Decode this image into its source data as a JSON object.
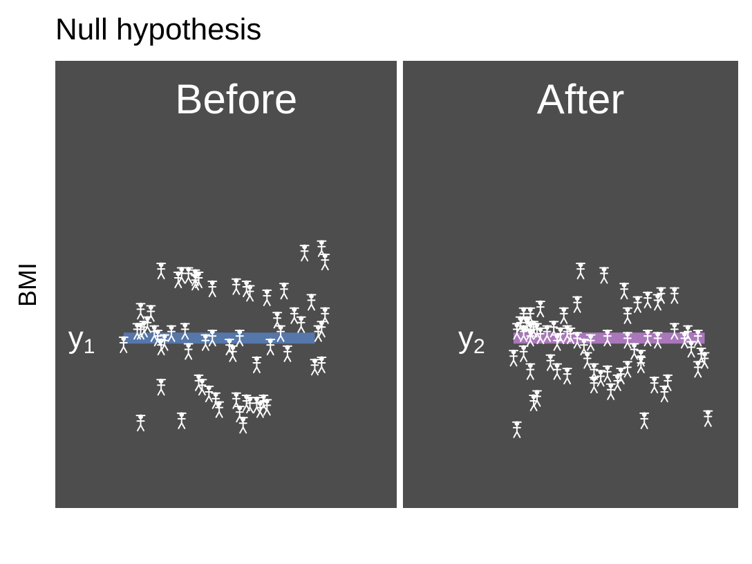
{
  "chart_data": {
    "type": "scatter",
    "title": "Null hypothesis",
    "ylabel": "BMI",
    "xlabel": "",
    "ylim": [
      0,
      10
    ],
    "colors": {
      "panel": "#4d4d4d",
      "points": "#ffffff",
      "before_mean": "#5577aa",
      "after_mean": "#aa77bb"
    },
    "panels": [
      {
        "name": "Before",
        "mean_label": "y",
        "mean_subscript": "1",
        "mean": 3.8,
        "mean_x_range": [
          0.2,
          0.76
        ],
        "points": [
          [
            0.31,
            5.3
          ],
          [
            0.36,
            5.1
          ],
          [
            0.37,
            5.2
          ],
          [
            0.39,
            5.2
          ],
          [
            0.41,
            5.05
          ],
          [
            0.42,
            5.1
          ],
          [
            0.41,
            5.15
          ],
          [
            0.46,
            4.9
          ],
          [
            0.53,
            4.95
          ],
          [
            0.56,
            4.9
          ],
          [
            0.62,
            4.7
          ],
          [
            0.67,
            4.85
          ],
          [
            0.57,
            4.8
          ],
          [
            0.7,
            4.3
          ],
          [
            0.72,
            4.1
          ],
          [
            0.75,
            4.6
          ],
          [
            0.79,
            5.5
          ],
          [
            0.78,
            5.8
          ],
          [
            0.73,
            5.7
          ],
          [
            0.25,
            4.4
          ],
          [
            0.27,
            4.1
          ],
          [
            0.28,
            4.35
          ],
          [
            0.24,
            3.95
          ],
          [
            0.25,
            3.95
          ],
          [
            0.26,
            4.0
          ],
          [
            0.29,
            3.9
          ],
          [
            0.3,
            3.8
          ],
          [
            0.34,
            3.9
          ],
          [
            0.38,
            3.95
          ],
          [
            0.31,
            3.6
          ],
          [
            0.32,
            3.7
          ],
          [
            0.39,
            3.5
          ],
          [
            0.44,
            3.7
          ],
          [
            0.46,
            3.8
          ],
          [
            0.51,
            3.6
          ],
          [
            0.52,
            3.45
          ],
          [
            0.54,
            3.8
          ],
          [
            0.63,
            3.6
          ],
          [
            0.65,
            4.2
          ],
          [
            0.66,
            3.9
          ],
          [
            0.68,
            3.45
          ],
          [
            0.77,
            3.9
          ],
          [
            0.78,
            4.0
          ],
          [
            0.79,
            4.3
          ],
          [
            0.2,
            3.65
          ],
          [
            0.78,
            3.2
          ],
          [
            0.76,
            3.15
          ],
          [
            0.59,
            3.2
          ],
          [
            0.31,
            2.7
          ],
          [
            0.42,
            2.8
          ],
          [
            0.43,
            2.7
          ],
          [
            0.45,
            2.55
          ],
          [
            0.47,
            2.4
          ],
          [
            0.48,
            2.2
          ],
          [
            0.53,
            2.4
          ],
          [
            0.56,
            2.35
          ],
          [
            0.57,
            2.3
          ],
          [
            0.59,
            2.3
          ],
          [
            0.6,
            2.2
          ],
          [
            0.61,
            2.35
          ],
          [
            0.62,
            2.25
          ],
          [
            0.54,
            2.1
          ],
          [
            0.25,
            1.9
          ],
          [
            0.37,
            1.95
          ],
          [
            0.55,
            1.85
          ]
        ]
      },
      {
        "name": "After",
        "mean_label": "y",
        "mean_subscript": "2",
        "mean": 3.8,
        "mean_x_range": [
          0.33,
          0.9
        ],
        "points": [
          [
            0.53,
            5.3
          ],
          [
            0.6,
            5.2
          ],
          [
            0.66,
            4.85
          ],
          [
            0.76,
            4.6
          ],
          [
            0.77,
            4.75
          ],
          [
            0.81,
            4.75
          ],
          [
            0.73,
            4.65
          ],
          [
            0.7,
            4.55
          ],
          [
            0.67,
            4.3
          ],
          [
            0.52,
            4.55
          ],
          [
            0.48,
            4.3
          ],
          [
            0.41,
            4.45
          ],
          [
            0.38,
            4.3
          ],
          [
            0.36,
            4.3
          ],
          [
            0.35,
            4.1
          ],
          [
            0.37,
            4.1
          ],
          [
            0.39,
            4.0
          ],
          [
            0.4,
            3.95
          ],
          [
            0.45,
            4.0
          ],
          [
            0.47,
            3.85
          ],
          [
            0.43,
            3.9
          ],
          [
            0.41,
            3.85
          ],
          [
            0.38,
            3.8
          ],
          [
            0.34,
            3.95
          ],
          [
            0.36,
            3.9
          ],
          [
            0.38,
            3.95
          ],
          [
            0.46,
            3.7
          ],
          [
            0.49,
            3.9
          ],
          [
            0.5,
            3.85
          ],
          [
            0.52,
            3.75
          ],
          [
            0.54,
            3.6
          ],
          [
            0.56,
            3.7
          ],
          [
            0.61,
            3.8
          ],
          [
            0.67,
            3.75
          ],
          [
            0.69,
            3.5
          ],
          [
            0.71,
            3.35
          ],
          [
            0.73,
            3.8
          ],
          [
            0.76,
            3.75
          ],
          [
            0.81,
            3.95
          ],
          [
            0.84,
            3.75
          ],
          [
            0.85,
            3.9
          ],
          [
            0.88,
            3.8
          ],
          [
            0.86,
            3.55
          ],
          [
            0.89,
            3.4
          ],
          [
            0.9,
            3.3
          ],
          [
            0.88,
            3.1
          ],
          [
            0.33,
            3.35
          ],
          [
            0.36,
            3.45
          ],
          [
            0.38,
            3.05
          ],
          [
            0.44,
            3.25
          ],
          [
            0.46,
            3.05
          ],
          [
            0.49,
            2.95
          ],
          [
            0.55,
            3.3
          ],
          [
            0.57,
            3.05
          ],
          [
            0.59,
            2.9
          ],
          [
            0.61,
            3.0
          ],
          [
            0.64,
            2.8
          ],
          [
            0.65,
            2.95
          ],
          [
            0.67,
            3.1
          ],
          [
            0.71,
            3.2
          ],
          [
            0.75,
            2.75
          ],
          [
            0.78,
            2.55
          ],
          [
            0.79,
            2.8
          ],
          [
            0.62,
            2.6
          ],
          [
            0.57,
            2.75
          ],
          [
            0.39,
            2.35
          ],
          [
            0.4,
            2.45
          ],
          [
            0.34,
            1.75
          ],
          [
            0.72,
            1.95
          ],
          [
            0.91,
            2.0
          ]
        ]
      }
    ]
  }
}
